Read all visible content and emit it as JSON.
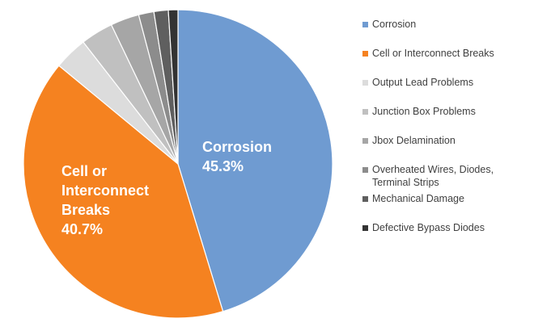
{
  "chart_data": {
    "type": "pie",
    "title": "",
    "start_angle_deg": 0,
    "direction": "clockwise",
    "slices": [
      {
        "label": "Corrosion",
        "value": 45.3,
        "color": "#6f9bd1",
        "data_label": [
          "Corrosion",
          "45.3%"
        ]
      },
      {
        "label": "Cell or Interconnect Breaks",
        "value": 40.7,
        "color": "#f58220",
        "data_label": [
          "Cell or",
          "Interconnect",
          "Breaks",
          "40.7%"
        ]
      },
      {
        "label": "Output Lead Problems",
        "value": 3.5,
        "color": "#dcdcdc",
        "data_label": null
      },
      {
        "label": "Junction Box Problems",
        "value": 3.4,
        "color": "#c0c0c0",
        "data_label": null
      },
      {
        "label": "Jbox Delamination",
        "value": 3.0,
        "color": "#a6a6a6",
        "data_label": null
      },
      {
        "label": "Overheated Wires, Diodes, Terminal Strips",
        "value": 1.6,
        "color": "#8c8c8c",
        "data_label": null
      },
      {
        "label": "Mechanical Damage",
        "value": 1.5,
        "color": "#5f5f5f",
        "data_label": null
      },
      {
        "label": "Defective Bypass Diodes",
        "value": 1.0,
        "color": "#333333",
        "data_label": null
      }
    ],
    "legend_position": "right"
  },
  "legend": {
    "items": [
      {
        "lines": [
          "Corrosion"
        ]
      },
      {
        "lines": [
          "Cell or Interconnect Breaks"
        ]
      },
      {
        "lines": [
          "Output Lead Problems"
        ]
      },
      {
        "lines": [
          "Junction Box Problems"
        ]
      },
      {
        "lines": [
          "Jbox Delamination"
        ]
      },
      {
        "lines": [
          "Overheated Wires, Diodes,",
          "Terminal Strips"
        ]
      },
      {
        "lines": [
          "Mechanical Damage"
        ]
      },
      {
        "lines": [
          "Defective Bypass Diodes"
        ]
      }
    ]
  }
}
